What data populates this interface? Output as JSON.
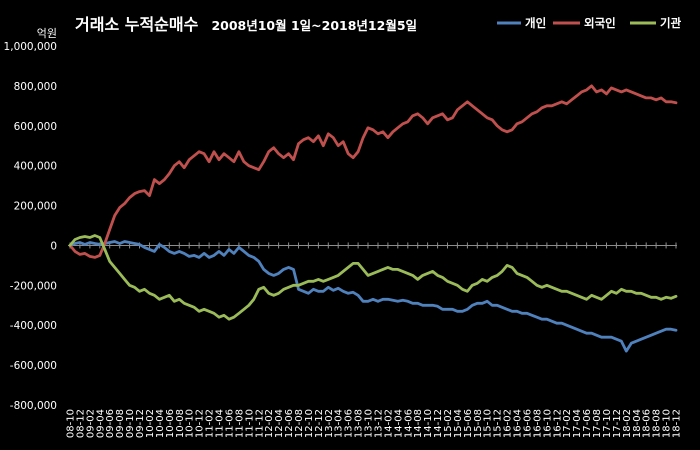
{
  "chart_data": {
    "type": "line",
    "title": "거래소 누적순매수",
    "subtitle": "2008년10월 1일~2018년12월5일",
    "ylabel": "억원",
    "ylim": [
      -800000,
      1000000
    ],
    "grid": false,
    "legend_position": "top-right",
    "y_tick_labels": [
      "1,000,000",
      "800,000",
      "600,000",
      "400,000",
      "200,000",
      "0",
      "-200,000",
      "-400,000",
      "-600,000",
      "-800,000"
    ],
    "x_tick_labels": [
      "08-10",
      "08-12",
      "09-02",
      "09-04",
      "09-06",
      "09-08",
      "09-10",
      "09-12",
      "10-02",
      "10-04",
      "10-06",
      "10-08",
      "10-10",
      "10-12",
      "11-02",
      "11-04",
      "11-06",
      "11-08",
      "11-10",
      "11-12",
      "12-02",
      "12-04",
      "12-06",
      "12-08",
      "12-10",
      "12-12",
      "13-02",
      "13-04",
      "13-06",
      "13-08",
      "13-10",
      "13-12",
      "14-02",
      "14-04",
      "14-06",
      "14-08",
      "14-10",
      "14-12",
      "15-02",
      "15-04",
      "15-06",
      "15-08",
      "15-10",
      "15-12",
      "16-02",
      "16-04",
      "16-06",
      "16-08",
      "16-10",
      "16-12",
      "17-02",
      "17-04",
      "17-06",
      "17-08",
      "17-10",
      "17-12",
      "18-02",
      "18-04",
      "18-06",
      "18-08",
      "18-10",
      "18-12"
    ],
    "x": [
      "08-10",
      "08-11",
      "08-12",
      "09-01",
      "09-02",
      "09-03",
      "09-04",
      "09-05",
      "09-06",
      "09-07",
      "09-08",
      "09-09",
      "09-10",
      "09-11",
      "09-12",
      "10-01",
      "10-02",
      "10-03",
      "10-04",
      "10-05",
      "10-06",
      "10-07",
      "10-08",
      "10-09",
      "10-10",
      "10-11",
      "10-12",
      "11-01",
      "11-02",
      "11-03",
      "11-04",
      "11-05",
      "11-06",
      "11-07",
      "11-08",
      "11-09",
      "11-10",
      "11-11",
      "11-12",
      "12-01",
      "12-02",
      "12-03",
      "12-04",
      "12-05",
      "12-06",
      "12-07",
      "12-08",
      "12-09",
      "12-10",
      "12-11",
      "12-12",
      "13-01",
      "13-02",
      "13-03",
      "13-04",
      "13-05",
      "13-06",
      "13-07",
      "13-08",
      "13-09",
      "13-10",
      "13-11",
      "13-12",
      "14-01",
      "14-02",
      "14-03",
      "14-04",
      "14-05",
      "14-06",
      "14-07",
      "14-08",
      "14-09",
      "14-10",
      "14-11",
      "14-12",
      "15-01",
      "15-02",
      "15-03",
      "15-04",
      "15-05",
      "15-06",
      "15-07",
      "15-08",
      "15-09",
      "15-10",
      "15-11",
      "15-12",
      "16-01",
      "16-02",
      "16-03",
      "16-04",
      "16-05",
      "16-06",
      "16-07",
      "16-08",
      "16-09",
      "16-10",
      "16-11",
      "16-12",
      "17-01",
      "17-02",
      "17-03",
      "17-04",
      "17-05",
      "17-06",
      "17-07",
      "17-08",
      "17-09",
      "17-10",
      "17-11",
      "17-12",
      "18-01",
      "18-02",
      "18-03",
      "18-04",
      "18-05",
      "18-06",
      "18-07",
      "18-08",
      "18-09",
      "18-10",
      "18-11",
      "18-12"
    ],
    "series": [
      {
        "name": "개인",
        "color": "#4F81BD",
        "values": [
          0,
          10000,
          15000,
          5000,
          15000,
          10000,
          5000,
          10000,
          15000,
          20000,
          10000,
          20000,
          15000,
          10000,
          5000,
          -10000,
          -20000,
          -30000,
          5000,
          -10000,
          -30000,
          -40000,
          -30000,
          -40000,
          -55000,
          -50000,
          -60000,
          -40000,
          -60000,
          -50000,
          -30000,
          -50000,
          -20000,
          -40000,
          -10000,
          -30000,
          -50000,
          -60000,
          -80000,
          -120000,
          -140000,
          -150000,
          -140000,
          -120000,
          -110000,
          -120000,
          -220000,
          -230000,
          -240000,
          -220000,
          -230000,
          -230000,
          -210000,
          -225000,
          -215000,
          -230000,
          -240000,
          -235000,
          -250000,
          -280000,
          -280000,
          -270000,
          -280000,
          -270000,
          -270000,
          -275000,
          -280000,
          -275000,
          -280000,
          -290000,
          -290000,
          -300000,
          -300000,
          -300000,
          -305000,
          -320000,
          -320000,
          -320000,
          -330000,
          -330000,
          -320000,
          -300000,
          -290000,
          -290000,
          -280000,
          -300000,
          -300000,
          -310000,
          -320000,
          -330000,
          -330000,
          -340000,
          -340000,
          -350000,
          -360000,
          -370000,
          -370000,
          -380000,
          -390000,
          -390000,
          -400000,
          -410000,
          -420000,
          -430000,
          -440000,
          -440000,
          -450000,
          -460000,
          -460000,
          -460000,
          -470000,
          -480000,
          -530000,
          -490000,
          -480000,
          -470000,
          -460000,
          -450000,
          -440000,
          -430000,
          -420000,
          -420000,
          -425000
        ]
      },
      {
        "name": "외국인",
        "color": "#C0504D",
        "values": [
          0,
          -30000,
          -45000,
          -40000,
          -55000,
          -60000,
          -50000,
          10000,
          80000,
          150000,
          190000,
          210000,
          240000,
          260000,
          270000,
          275000,
          250000,
          330000,
          310000,
          330000,
          360000,
          400000,
          420000,
          390000,
          430000,
          450000,
          470000,
          460000,
          420000,
          470000,
          430000,
          460000,
          440000,
          420000,
          470000,
          420000,
          400000,
          390000,
          380000,
          420000,
          470000,
          490000,
          460000,
          440000,
          460000,
          430000,
          510000,
          530000,
          540000,
          520000,
          550000,
          500000,
          560000,
          540000,
          500000,
          520000,
          460000,
          440000,
          470000,
          540000,
          590000,
          580000,
          560000,
          570000,
          540000,
          570000,
          590000,
          610000,
          620000,
          650000,
          660000,
          640000,
          610000,
          640000,
          650000,
          660000,
          630000,
          640000,
          680000,
          700000,
          720000,
          700000,
          680000,
          660000,
          640000,
          630000,
          600000,
          580000,
          570000,
          580000,
          610000,
          620000,
          640000,
          660000,
          670000,
          690000,
          700000,
          700000,
          710000,
          720000,
          710000,
          730000,
          750000,
          770000,
          780000,
          800000,
          770000,
          780000,
          760000,
          790000,
          780000,
          770000,
          780000,
          770000,
          760000,
          750000,
          740000,
          740000,
          730000,
          740000,
          720000,
          720000,
          715000
        ]
      },
      {
        "name": "기관",
        "color": "#9BBB59",
        "values": [
          0,
          30000,
          40000,
          45000,
          40000,
          50000,
          40000,
          -20000,
          -80000,
          -110000,
          -140000,
          -170000,
          -200000,
          -210000,
          -230000,
          -220000,
          -240000,
          -250000,
          -270000,
          -260000,
          -250000,
          -280000,
          -270000,
          -290000,
          -300000,
          -310000,
          -330000,
          -320000,
          -330000,
          -340000,
          -360000,
          -350000,
          -370000,
          -360000,
          -340000,
          -320000,
          -300000,
          -270000,
          -220000,
          -210000,
          -240000,
          -250000,
          -240000,
          -220000,
          -210000,
          -200000,
          -200000,
          -190000,
          -180000,
          -180000,
          -170000,
          -180000,
          -170000,
          -160000,
          -150000,
          -130000,
          -110000,
          -90000,
          -90000,
          -120000,
          -150000,
          -140000,
          -130000,
          -120000,
          -110000,
          -120000,
          -120000,
          -130000,
          -140000,
          -150000,
          -170000,
          -150000,
          -140000,
          -130000,
          -150000,
          -160000,
          -180000,
          -190000,
          -200000,
          -220000,
          -230000,
          -200000,
          -190000,
          -170000,
          -180000,
          -160000,
          -150000,
          -130000,
          -100000,
          -110000,
          -140000,
          -150000,
          -160000,
          -180000,
          -200000,
          -210000,
          -200000,
          -210000,
          -220000,
          -230000,
          -230000,
          -240000,
          -250000,
          -260000,
          -270000,
          -250000,
          -260000,
          -270000,
          -250000,
          -230000,
          -240000,
          -220000,
          -230000,
          -230000,
          -240000,
          -240000,
          -250000,
          -260000,
          -260000,
          -270000,
          -260000,
          -265000,
          -255000
        ]
      }
    ]
  }
}
